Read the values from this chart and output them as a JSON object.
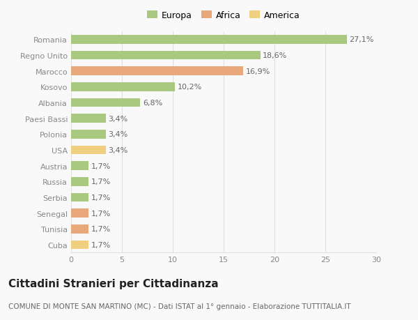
{
  "countries": [
    "Romania",
    "Regno Unito",
    "Marocco",
    "Kosovo",
    "Albania",
    "Paesi Bassi",
    "Polonia",
    "USA",
    "Austria",
    "Russia",
    "Serbia",
    "Senegal",
    "Tunisia",
    "Cuba"
  ],
  "values": [
    27.1,
    18.6,
    16.9,
    10.2,
    6.8,
    3.4,
    3.4,
    3.4,
    1.7,
    1.7,
    1.7,
    1.7,
    1.7,
    1.7
  ],
  "labels": [
    "27,1%",
    "18,6%",
    "16,9%",
    "10,2%",
    "6,8%",
    "3,4%",
    "3,4%",
    "3,4%",
    "1,7%",
    "1,7%",
    "1,7%",
    "1,7%",
    "1,7%",
    "1,7%"
  ],
  "colors": [
    "#a8c97f",
    "#a8c97f",
    "#e8a87c",
    "#a8c97f",
    "#a8c97f",
    "#a8c97f",
    "#a8c97f",
    "#f0d080",
    "#a8c97f",
    "#a8c97f",
    "#a8c97f",
    "#e8a87c",
    "#e8a87c",
    "#f0d080"
  ],
  "legend_labels": [
    "Europa",
    "Africa",
    "America"
  ],
  "legend_colors": [
    "#a8c97f",
    "#e8a87c",
    "#f0d080"
  ],
  "title": "Cittadini Stranieri per Cittadinanza",
  "subtitle": "COMUNE DI MONTE SAN MARTINO (MC) - Dati ISTAT al 1° gennaio - Elaborazione TUTTITALIA.IT",
  "xlim": [
    0,
    30
  ],
  "xticks": [
    0,
    5,
    10,
    15,
    20,
    25,
    30
  ],
  "background_color": "#f9f9f9",
  "grid_color": "#e0e0e0",
  "bar_height": 0.55,
  "title_fontsize": 11,
  "subtitle_fontsize": 7.5,
  "label_fontsize": 8,
  "tick_fontsize": 8,
  "legend_fontsize": 9
}
